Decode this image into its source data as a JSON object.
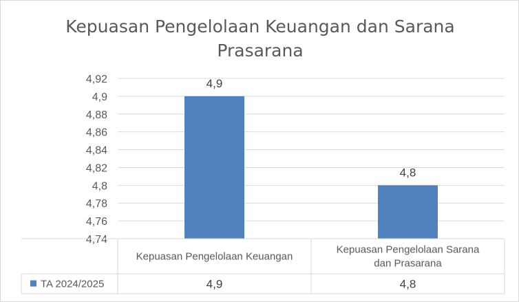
{
  "chart_data": {
    "type": "bar",
    "title_lines": [
      "Kepuasan Pengelolaan Keuangan dan Sarana",
      "Prasarana"
    ],
    "categories": [
      [
        "Kepuasan Pengelolaan Keuangan"
      ],
      [
        "Kepuasan Pengelolaan Sarana",
        "dan Prasarana"
      ]
    ],
    "series": [
      {
        "name": "TA 2024/2025",
        "values": [
          4.9,
          4.8
        ],
        "value_labels": [
          "4,9",
          "4,8"
        ]
      }
    ],
    "ylim": [
      4.74,
      4.92
    ],
    "yticks": [
      4.74,
      4.76,
      4.78,
      4.8,
      4.82,
      4.84,
      4.86,
      4.88,
      4.9,
      4.92
    ],
    "ytick_labels": [
      "4,74",
      "4,76",
      "4,78",
      "4,8",
      "4,82",
      "4,84",
      "4,86",
      "4,88",
      "4,9",
      "4,92"
    ],
    "grid": true,
    "legend_placement": "data-table",
    "colors": {
      "bar": "#4f81bd",
      "grid": "#d9d9d9",
      "text": "#595959"
    }
  }
}
